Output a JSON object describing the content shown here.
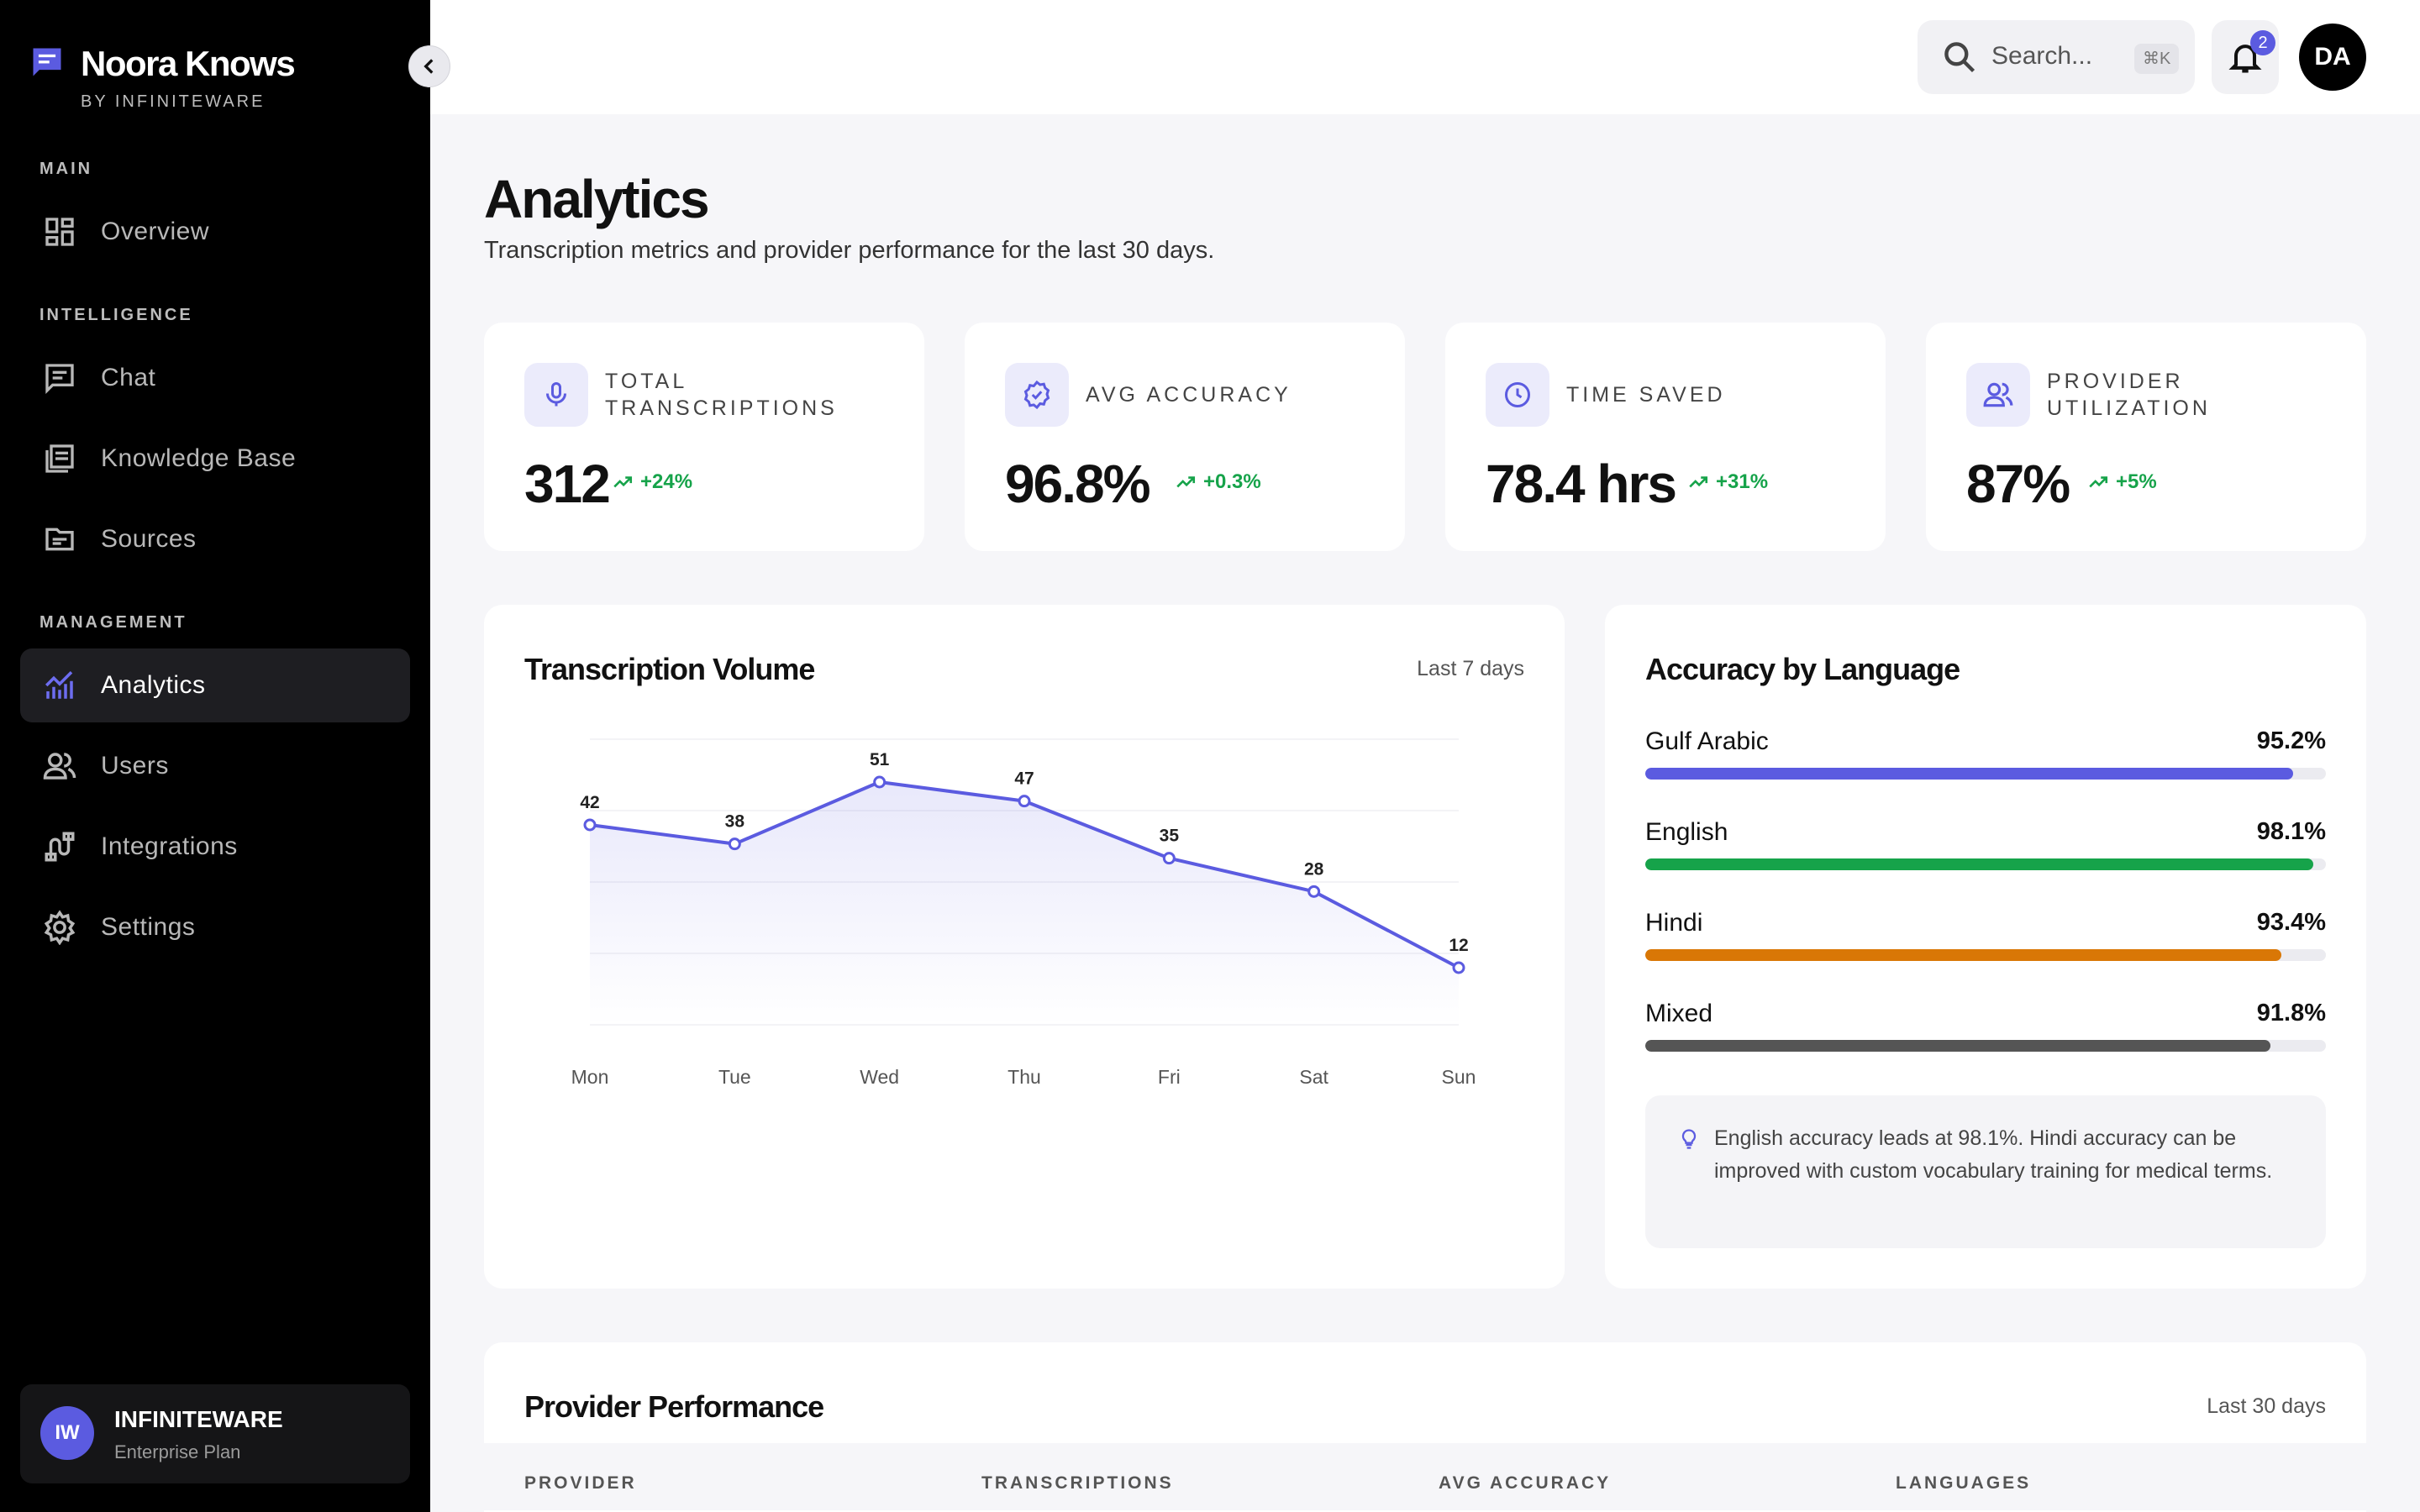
{
  "brand": {
    "title": "Noora Knows",
    "subtitle": "BY INFINITEWARE"
  },
  "nav": {
    "sections": {
      "main": "MAIN",
      "intelligence": "INTELLIGENCE",
      "management": "MANAGEMENT"
    },
    "items": [
      {
        "label": "Overview",
        "icon": "overview-icon"
      },
      {
        "label": "Chat",
        "icon": "chat-icon"
      },
      {
        "label": "Knowledge Base",
        "icon": "knowledge-base-icon"
      },
      {
        "label": "Sources",
        "icon": "folder-icon"
      },
      {
        "label": "Analytics",
        "icon": "analytics-icon",
        "active": true
      },
      {
        "label": "Users",
        "icon": "users-icon"
      },
      {
        "label": "Integrations",
        "icon": "integrations-icon"
      },
      {
        "label": "Settings",
        "icon": "gear-icon"
      }
    ]
  },
  "account": {
    "initials": "IW",
    "name": "INFINITEWARE",
    "plan": "Enterprise Plan"
  },
  "header": {
    "search_placeholder": "Search...",
    "search_shortcut": "⌘K",
    "notification_count": "2",
    "user_initials": "DA"
  },
  "page": {
    "title": "Analytics",
    "subtitle": "Transcription metrics and provider performance for the last 30 days."
  },
  "kpis": [
    {
      "label": "TOTAL TRANSCRIPTIONS",
      "value": "312",
      "delta": "+24%",
      "icon": "microphone-icon"
    },
    {
      "label": "AVG ACCURACY",
      "value": "96.8%",
      "delta": "+0.3%",
      "icon": "verified-badge-icon"
    },
    {
      "label": "TIME SAVED",
      "value": "78.4 hrs",
      "delta": "+31%",
      "icon": "clock-icon"
    },
    {
      "label": "PROVIDER UTILIZATION",
      "value": "87%",
      "delta": "+5%",
      "icon": "users-icon"
    }
  ],
  "volume": {
    "title": "Transcription Volume",
    "range": "Last 7 days"
  },
  "chart_data": {
    "type": "area",
    "title": "Transcription Volume",
    "categories": [
      "Mon",
      "Tue",
      "Wed",
      "Thu",
      "Fri",
      "Sat",
      "Sun"
    ],
    "values": [
      42,
      38,
      51,
      47,
      35,
      28,
      12
    ],
    "ylim": [
      0,
      60
    ],
    "grid": true,
    "color": "#5b5be0"
  },
  "accuracy": {
    "title": "Accuracy by Language",
    "languages": [
      {
        "name": "Gulf Arabic",
        "value": "95.2%",
        "percent": 95.2,
        "color": "#5b5be0"
      },
      {
        "name": "English",
        "value": "98.1%",
        "percent": 98.1,
        "color": "#16a34a"
      },
      {
        "name": "Hindi",
        "value": "93.4%",
        "percent": 93.4,
        "color": "#d97706"
      },
      {
        "name": "Mixed",
        "value": "91.8%",
        "percent": 91.8,
        "color": "#555555"
      }
    ],
    "insight": "English accuracy leads at 98.1%. Hindi accuracy can be improved with custom vocabulary training for medical terms."
  },
  "providers": {
    "title": "Provider Performance",
    "range": "Last 30 days",
    "columns": [
      "PROVIDER",
      "TRANSCRIPTIONS",
      "AVG ACCURACY",
      "LANGUAGES"
    ]
  }
}
